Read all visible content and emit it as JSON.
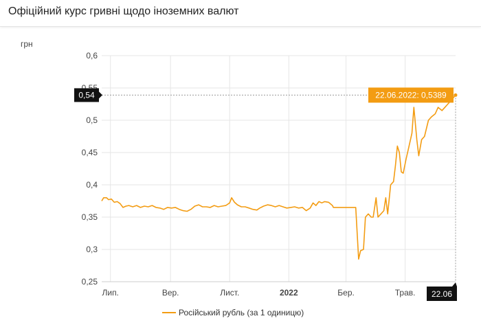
{
  "header": {
    "title": "Офіційний курс гривні щодо іноземних валют"
  },
  "chart_data": {
    "type": "line",
    "ylabel": "грн",
    "ylim": [
      0.25,
      0.6
    ],
    "yticks": [
      "0,6",
      "0,55",
      "0,5",
      "0,45",
      "0,4",
      "0,35",
      "0,3",
      "0,25"
    ],
    "y_tick_values": [
      0.6,
      0.55,
      0.5,
      0.45,
      0.4,
      0.35,
      0.3,
      0.25
    ],
    "xlim": [
      "2021-06-22",
      "2022-06-22"
    ],
    "x_ticks": [
      {
        "label": "Лип.",
        "date": "2021-07-01",
        "bold": false
      },
      {
        "label": "Вер.",
        "date": "2021-09-01",
        "bold": false
      },
      {
        "label": "Лист.",
        "date": "2021-11-01",
        "bold": false
      },
      {
        "label": "2022",
        "date": "2022-01-01",
        "bold": true
      },
      {
        "label": "Бер.",
        "date": "2022-03-01",
        "bold": false
      },
      {
        "label": "Трав.",
        "date": "2022-05-01",
        "bold": false
      }
    ],
    "series": [
      {
        "name": "Російський рубль (за 1 одиницю)",
        "color": "#f39c12",
        "points": [
          [
            "2021-06-22",
            0.375
          ],
          [
            "2021-06-24",
            0.38
          ],
          [
            "2021-06-27",
            0.38
          ],
          [
            "2021-06-29",
            0.377
          ],
          [
            "2021-07-02",
            0.378
          ],
          [
            "2021-07-05",
            0.373
          ],
          [
            "2021-07-08",
            0.374
          ],
          [
            "2021-07-11",
            0.371
          ],
          [
            "2021-07-14",
            0.365
          ],
          [
            "2021-07-17",
            0.367
          ],
          [
            "2021-07-20",
            0.368
          ],
          [
            "2021-07-24",
            0.366
          ],
          [
            "2021-07-28",
            0.368
          ],
          [
            "2021-08-01",
            0.365
          ],
          [
            "2021-08-05",
            0.367
          ],
          [
            "2021-08-09",
            0.366
          ],
          [
            "2021-08-13",
            0.368
          ],
          [
            "2021-08-17",
            0.365
          ],
          [
            "2021-08-21",
            0.364
          ],
          [
            "2021-08-25",
            0.362
          ],
          [
            "2021-08-29",
            0.365
          ],
          [
            "2021-09-02",
            0.364
          ],
          [
            "2021-09-06",
            0.365
          ],
          [
            "2021-09-10",
            0.362
          ],
          [
            "2021-09-14",
            0.36
          ],
          [
            "2021-09-18",
            0.359
          ],
          [
            "2021-09-22",
            0.362
          ],
          [
            "2021-09-26",
            0.367
          ],
          [
            "2021-09-30",
            0.369
          ],
          [
            "2021-10-04",
            0.366
          ],
          [
            "2021-10-08",
            0.366
          ],
          [
            "2021-10-12",
            0.365
          ],
          [
            "2021-10-16",
            0.368
          ],
          [
            "2021-10-20",
            0.366
          ],
          [
            "2021-10-24",
            0.367
          ],
          [
            "2021-10-28",
            0.368
          ],
          [
            "2021-11-01",
            0.372
          ],
          [
            "2021-11-03",
            0.38
          ],
          [
            "2021-11-06",
            0.373
          ],
          [
            "2021-11-09",
            0.369
          ],
          [
            "2021-11-13",
            0.366
          ],
          [
            "2021-11-17",
            0.366
          ],
          [
            "2021-11-21",
            0.364
          ],
          [
            "2021-11-25",
            0.362
          ],
          [
            "2021-11-29",
            0.361
          ],
          [
            "2021-12-02",
            0.364
          ],
          [
            "2021-12-06",
            0.367
          ],
          [
            "2021-12-10",
            0.369
          ],
          [
            "2021-12-14",
            0.368
          ],
          [
            "2021-12-18",
            0.366
          ],
          [
            "2021-12-22",
            0.368
          ],
          [
            "2021-12-26",
            0.366
          ],
          [
            "2021-12-30",
            0.364
          ],
          [
            "2022-01-03",
            0.365
          ],
          [
            "2022-01-07",
            0.366
          ],
          [
            "2022-01-11",
            0.364
          ],
          [
            "2022-01-15",
            0.365
          ],
          [
            "2022-01-19",
            0.36
          ],
          [
            "2022-01-23",
            0.364
          ],
          [
            "2022-01-26",
            0.372
          ],
          [
            "2022-01-29",
            0.368
          ],
          [
            "2022-02-01",
            0.374
          ],
          [
            "2022-02-04",
            0.372
          ],
          [
            "2022-02-07",
            0.374
          ],
          [
            "2022-02-11",
            0.373
          ],
          [
            "2022-02-15",
            0.368
          ],
          [
            "2022-02-16",
            0.365
          ],
          [
            "2022-02-23",
            0.365
          ],
          [
            "2022-03-01",
            0.365
          ],
          [
            "2022-03-07",
            0.365
          ],
          [
            "2022-03-11",
            0.365
          ],
          [
            "2022-03-14",
            0.285
          ],
          [
            "2022-03-16",
            0.298
          ],
          [
            "2022-03-19",
            0.3
          ],
          [
            "2022-03-21",
            0.35
          ],
          [
            "2022-03-24",
            0.355
          ],
          [
            "2022-03-27",
            0.35
          ],
          [
            "2022-03-29",
            0.35
          ],
          [
            "2022-04-01",
            0.38
          ],
          [
            "2022-04-03",
            0.35
          ],
          [
            "2022-04-06",
            0.355
          ],
          [
            "2022-04-09",
            0.36
          ],
          [
            "2022-04-11",
            0.38
          ],
          [
            "2022-04-13",
            0.355
          ],
          [
            "2022-04-16",
            0.4
          ],
          [
            "2022-04-19",
            0.405
          ],
          [
            "2022-04-21",
            0.43
          ],
          [
            "2022-04-23",
            0.46
          ],
          [
            "2022-04-25",
            0.45
          ],
          [
            "2022-04-27",
            0.42
          ],
          [
            "2022-04-29",
            0.418
          ],
          [
            "2022-05-02",
            0.44
          ],
          [
            "2022-05-05",
            0.46
          ],
          [
            "2022-05-08",
            0.48
          ],
          [
            "2022-05-10",
            0.52
          ],
          [
            "2022-05-13",
            0.47
          ],
          [
            "2022-05-15",
            0.445
          ],
          [
            "2022-05-18",
            0.47
          ],
          [
            "2022-05-21",
            0.475
          ],
          [
            "2022-05-25",
            0.5
          ],
          [
            "2022-05-28",
            0.505
          ],
          [
            "2022-06-01",
            0.51
          ],
          [
            "2022-06-04",
            0.52
          ],
          [
            "2022-06-08",
            0.515
          ],
          [
            "2022-06-11",
            0.52
          ],
          [
            "2022-06-14",
            0.525
          ],
          [
            "2022-06-17",
            0.53
          ],
          [
            "2022-06-22",
            0.5389
          ]
        ]
      }
    ],
    "highlight": {
      "date": "2022-06-22",
      "value": 0.5389,
      "tooltip": "22.06.2022: 0,5389",
      "y_marker_label": "0,54",
      "x_marker_label": "22.06"
    },
    "legend": {
      "position": "bottom",
      "label": "Російський рубль (за 1 одиницю)"
    }
  }
}
